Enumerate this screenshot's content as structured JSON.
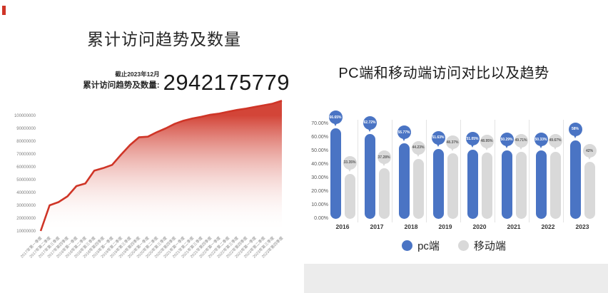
{
  "accent": {
    "red": "#cf3527",
    "blue": "#4a74c4",
    "gray": "#d9d9d9",
    "footer_gray": "#ececec"
  },
  "left_panel": {
    "title": "累计访问趋势及数量",
    "kpi_date": "截止2023年12月",
    "kpi_label": "累计访问趋势及数量:",
    "kpi_value": "2942175779"
  },
  "right_panel": {
    "title": "PC端和移动端访问对比以及趋势",
    "legend": [
      {
        "label": "pc端",
        "color": "#4a74c4"
      },
      {
        "label": "移动端",
        "color": "#d9d9d9"
      }
    ]
  },
  "chart_data": [
    {
      "type": "area",
      "title": "累计访问趋势及数量",
      "annotation": {
        "date": "截止2023年12月",
        "label": "累计访问趋势及数量:",
        "value": "2942175779"
      },
      "color": "#cf3527",
      "grid": false,
      "ylim": [
        10000000,
        100000000
      ],
      "yticks": [
        "100000000",
        "90000000",
        "80000000",
        "70000000",
        "60000000",
        "50000000",
        "40000000",
        "30000000",
        "20000000",
        "10000000"
      ],
      "x": [
        "2017年第一季度",
        "2017年第二季度",
        "2017年第三季度",
        "2017年第四季度",
        "2018年第一季度",
        "2018年第二季度",
        "2018年第三季度",
        "2018年第四季度",
        "2019年第一季度",
        "2019年第二季度",
        "2019年第三季度",
        "2019年第四季度",
        "2020年第一季度",
        "2020年第二季度",
        "2020年第三季度",
        "2020年第四季度",
        "2021年第一季度",
        "2021年第二季度",
        "2021年第三季度",
        "2021年第四季度",
        "2022年第一季度",
        "2022年第二季度",
        "2022年第三季度",
        "2022年第四季度",
        "2023年第一季度",
        "2023年第二季度",
        "2023年第三季度",
        "2023年第四季度"
      ],
      "values": [
        10000000,
        30000000,
        32500000,
        37000000,
        45000000,
        47000000,
        57000000,
        59000000,
        61500000,
        69500000,
        77000000,
        83000000,
        83500000,
        87000000,
        90000000,
        93500000,
        96000000,
        97700000,
        99000000,
        100600000,
        101500000,
        103000000,
        104400000,
        105400000,
        106700000,
        108000000,
        109300000,
        111500000
      ]
    },
    {
      "type": "bar",
      "style": "capsule-lollipop",
      "title": "PC端和移动端访问对比以及趋势",
      "categories": [
        "2016",
        "2017",
        "2018",
        "2019",
        "2020",
        "2021",
        "2022",
        "2023"
      ],
      "ylim": [
        0,
        70
      ],
      "yticks": [
        "70.00%",
        "60.00%",
        "50.00%",
        "40.00%",
        "30.00%",
        "20.00%",
        "10.00%",
        "0.00%"
      ],
      "legend_position": "bottom",
      "grid": false,
      "series": [
        {
          "name": "pc端",
          "color": "#4a74c4",
          "values": [
            66.65,
            62.72,
            55.77,
            51.63,
            51.05,
            50.29,
            50.33,
            58
          ],
          "labels": [
            "66.65%",
            "62.72%",
            "55.77%",
            "51.63%",
            "51.05%",
            "50.29%",
            "50.33%",
            "58%"
          ]
        },
        {
          "name": "移动端",
          "color": "#d9d9d9",
          "values": [
            33.35,
            37.28,
            44.23,
            48.37,
            48.95,
            49.71,
            49.67,
            42
          ],
          "labels": [
            "33.35%",
            "37.28%",
            "44.23%",
            "48.37%",
            "48.95%",
            "49.71%",
            "49.67%",
            "42%"
          ]
        }
      ]
    }
  ]
}
